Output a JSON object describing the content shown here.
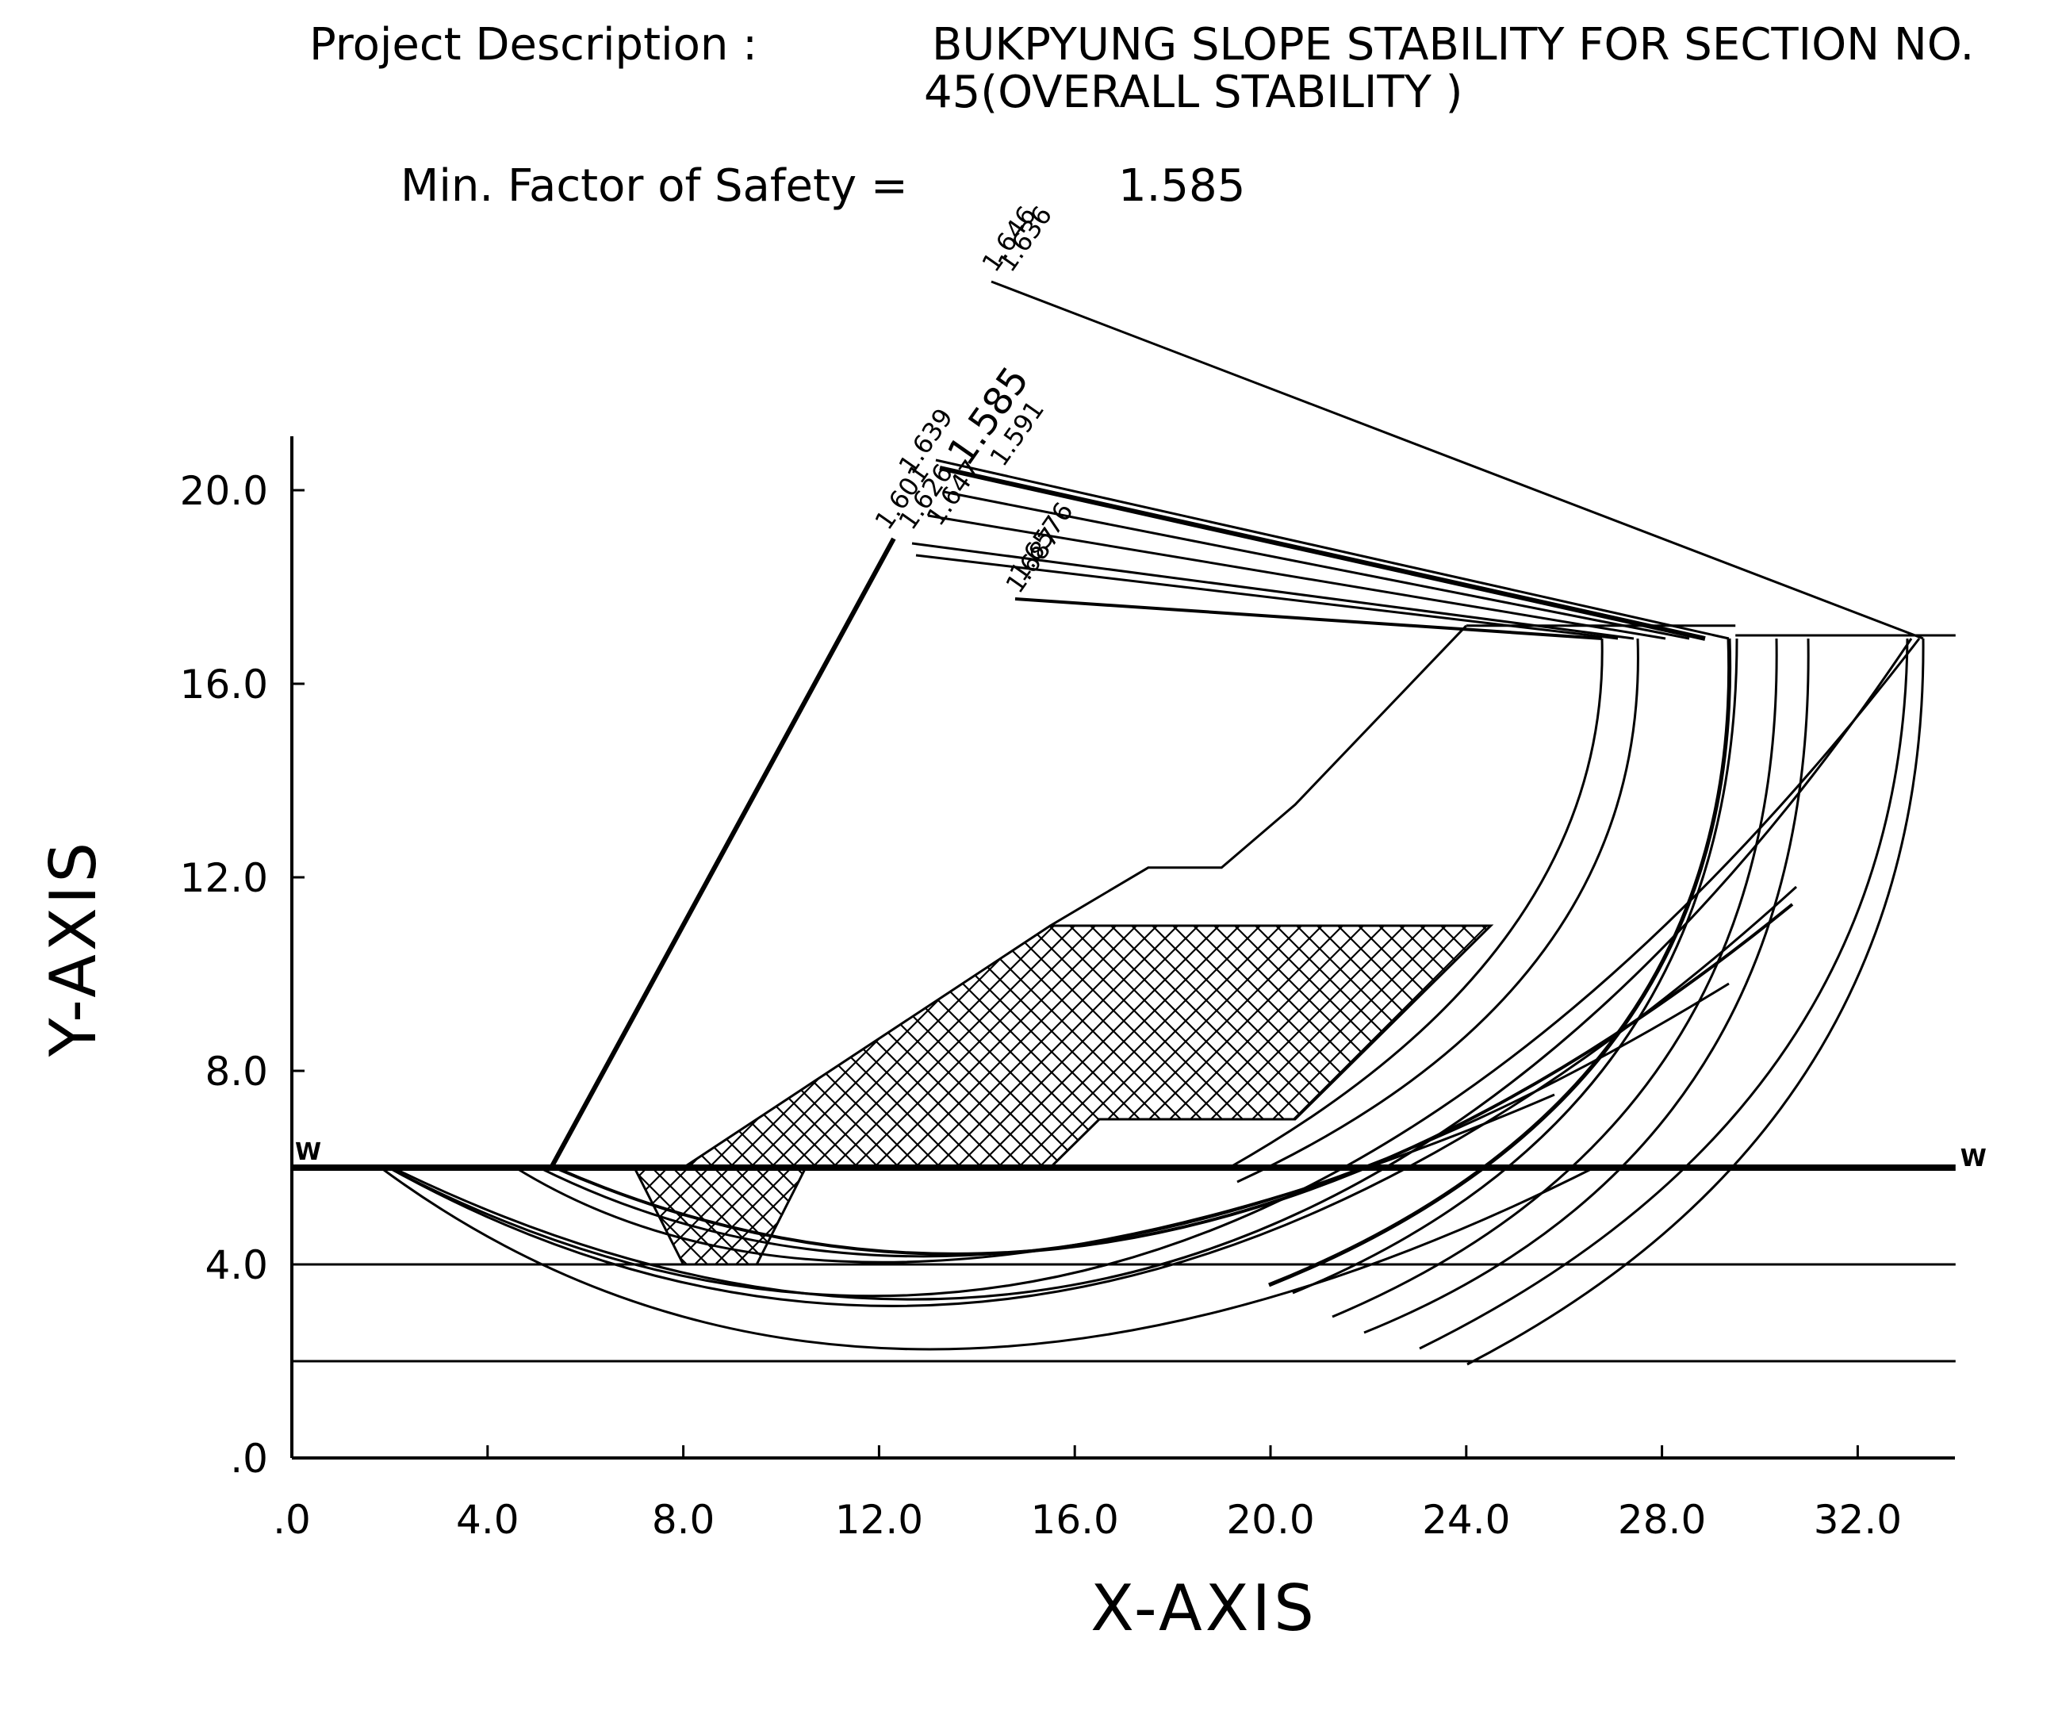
{
  "header": {
    "project_label": "Project Description :",
    "project_line1": "BUKPYUNG SLOPE STABILITY FOR SECTION NO.",
    "project_line2": "45(OVERALL STABILITY )",
    "min_fs_label": "Min. Factor of Safety =",
    "min_fs_value": "1.585"
  },
  "chart_data": {
    "type": "line",
    "xlabel": "X-AXIS",
    "ylabel": "Y-AXIS",
    "xlim": [
      0,
      34
    ],
    "ylim": [
      0,
      21
    ],
    "xticks": [
      0,
      4,
      8,
      12,
      16,
      20,
      24,
      28,
      32
    ],
    "yticks": [
      0,
      4,
      8,
      12,
      16,
      20
    ],
    "xtick_labels": [
      ".0",
      "4.0",
      "8.0",
      "12.0",
      "16.0",
      "20.0",
      "24.0",
      "28.0",
      "32.0"
    ],
    "ytick_labels": [
      ".0",
      "4.0",
      "8.0",
      "12.0",
      "16.0",
      "20.0"
    ],
    "water_level": {
      "y": 6.0,
      "marker": "W"
    },
    "ground_surface": [
      [
        0,
        6.0
      ],
      [
        5.3,
        6.0
      ],
      [
        12.3,
        19.0
      ]
    ],
    "layer_boundaries": [
      {
        "points": [
          [
            0,
            4.0
          ],
          [
            34,
            4.0
          ]
        ]
      },
      {
        "points": [
          [
            0,
            2.0
          ],
          [
            34,
            2.0
          ]
        ]
      },
      {
        "points": [
          [
            29.5,
            17.0
          ],
          [
            34,
            17.0
          ]
        ]
      }
    ],
    "fill_outline": [
      [
        15.5,
        11.0
      ],
      [
        17.5,
        12.2
      ],
      [
        19.0,
        12.2
      ],
      [
        20.5,
        13.5
      ],
      [
        24.0,
        17.2
      ]
    ],
    "top_step": [
      [
        24.0,
        17.2
      ],
      [
        29.5,
        17.2
      ]
    ],
    "hatched_zone": [
      [
        15.5,
        11.0
      ],
      [
        24.5,
        11.0
      ],
      [
        20.5,
        7.0
      ],
      [
        16.5,
        7.0
      ],
      [
        15.5,
        6.0
      ],
      [
        10.5,
        6.0
      ],
      [
        9.5,
        4.0
      ],
      [
        8.0,
        4.0
      ],
      [
        7.0,
        6.0
      ],
      [
        8.0,
        6.0
      ]
    ],
    "factor_of_safety_labels": [
      "1.646",
      "1.636",
      "1.639",
      "1.585",
      "1.591",
      "1.601",
      "1.626",
      "1.647",
      "1.6576",
      "1.687"
    ],
    "min_factor_of_safety": 1.585
  }
}
